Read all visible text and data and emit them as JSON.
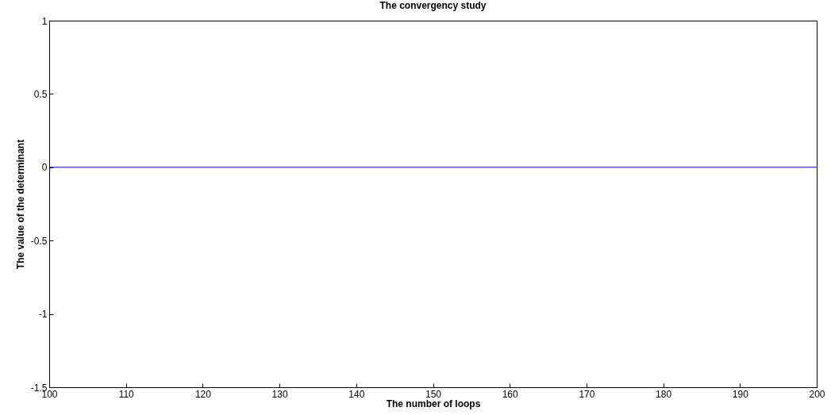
{
  "chart_data": {
    "type": "line",
    "title": "The  convergency study",
    "xlabel": "The number of loops",
    "ylabel": "The value of the determinant",
    "x": [
      100,
      200
    ],
    "series": [
      {
        "color": "#0000ff",
        "values": [
          0,
          0
        ]
      }
    ],
    "xlim": [
      100,
      200
    ],
    "xticks": [
      100,
      110,
      120,
      130,
      140,
      150,
      160,
      170,
      180,
      190,
      200
    ],
    "ylim": [
      -1.5,
      1
    ],
    "yticks": [
      -1.5,
      -1,
      -0.5,
      0,
      0.5,
      1
    ],
    "grid": false
  }
}
